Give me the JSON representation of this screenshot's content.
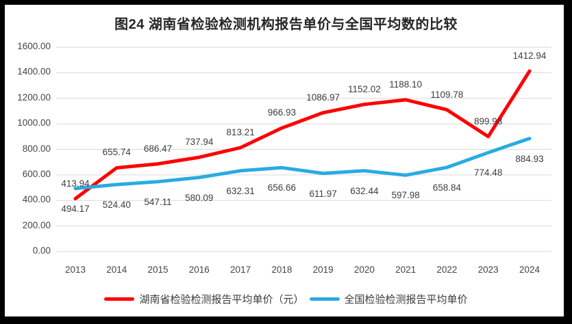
{
  "chart_data": {
    "type": "line",
    "title": "图24 湖南省检验检测机构报告单价与全国平均数的比较",
    "x": [
      2013,
      2014,
      2015,
      2016,
      2017,
      2018,
      2019,
      2020,
      2021,
      2022,
      2023,
      2024
    ],
    "series": [
      {
        "name": "湖南省检验检测报告平均单价（元）",
        "color": "#FF0000",
        "label_position": "above",
        "values": [
          413.94,
          655.74,
          686.47,
          737.94,
          813.21,
          966.93,
          1086.97,
          1152.02,
          1188.1,
          1109.78,
          899.93,
          1412.94
        ]
      },
      {
        "name": "全国检验检测报告平均单价",
        "color": "#29ABE2",
        "label_position": "below",
        "values": [
          494.17,
          524.4,
          547.11,
          580.09,
          632.31,
          656.66,
          611.97,
          632.44,
          597.98,
          658.84,
          774.48,
          884.93
        ]
      }
    ],
    "xlabel": "",
    "ylabel": "",
    "ylim": [
      0,
      1600
    ],
    "ytick_step": 200,
    "ytick_decimals": 2,
    "data_label_decimals": 2,
    "grid": true,
    "data_labels": true,
    "legend_position": "bottom"
  },
  "colors": {
    "frame": "#000000",
    "background": "#FFFFFF",
    "gridline": "#D9D9D9",
    "title_text": "#262626",
    "axis_text": "#444444",
    "data_label_text": "#3D3D3D"
  }
}
